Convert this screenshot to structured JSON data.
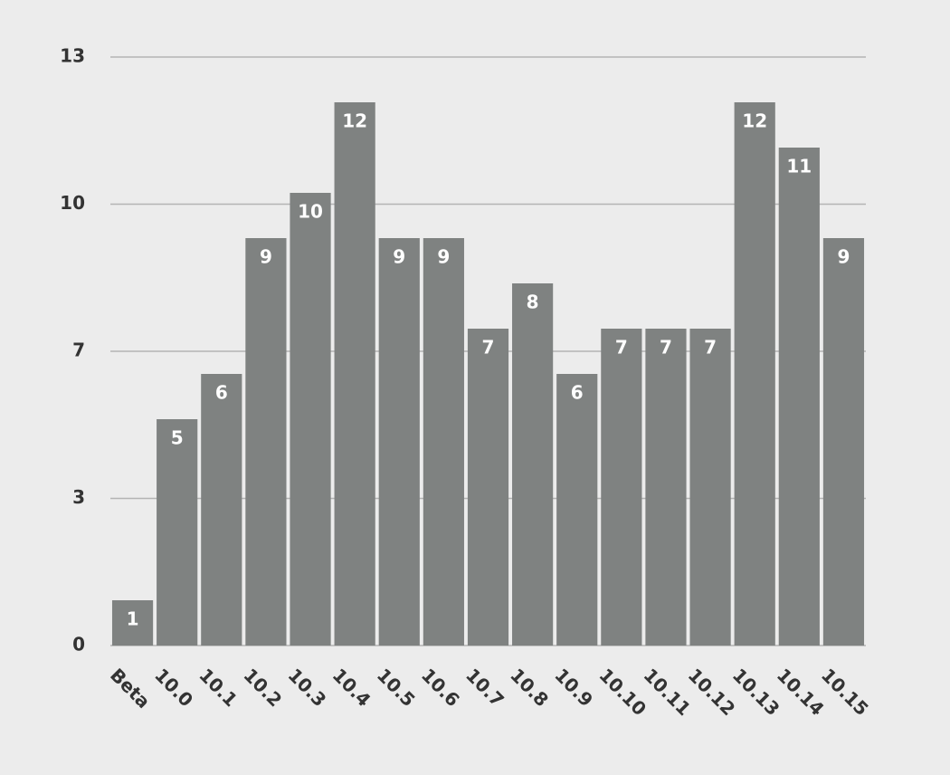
{
  "chart_data": {
    "type": "bar",
    "categories": [
      "Beta",
      "10.0",
      "10.1",
      "10.2",
      "10.3",
      "10.4",
      "10.5",
      "10.6",
      "10.7",
      "10.8",
      "10.9",
      "10.10",
      "10.11",
      "10.12",
      "10.13",
      "10.14",
      "10.15"
    ],
    "values": [
      1,
      5,
      6,
      9,
      10,
      12,
      9,
      9,
      7,
      8,
      6,
      7,
      7,
      7,
      12,
      11,
      9
    ],
    "color": "#7f8281",
    "ylim": [
      0,
      13
    ],
    "yticks": [
      0,
      {
        "value": 3.25,
        "label": "3"
      },
      {
        "value": 6.5,
        "label": "7"
      },
      {
        "value": 9.75,
        "label": "10"
      },
      13
    ],
    "grid": true
  }
}
